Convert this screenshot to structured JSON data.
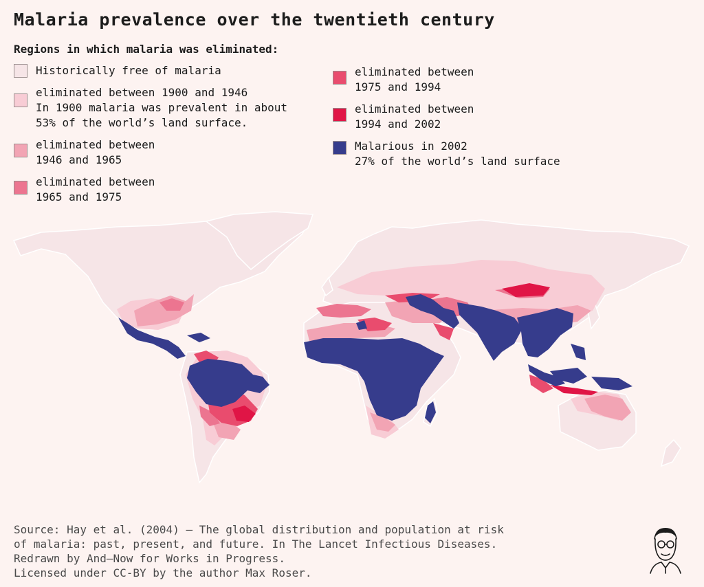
{
  "title": "Malaria prevalence over the twentieth century",
  "subtitle": "Regions in which malaria was eliminated:",
  "legend": [
    {
      "label": "Historically free of malaria",
      "color": "#f6e5e7"
    },
    {
      "label": "eliminated between 1900 and 1946\nIn 1900 malaria was prevalent in about\n53% of the world’s land surface.",
      "color": "#f8ccd5"
    },
    {
      "label": "eliminated between\n1946 and 1965",
      "color": "#f2a4b4"
    },
    {
      "label": "eliminated between\n1965 and 1975",
      "color": "#ec7590"
    },
    {
      "label": "eliminated between\n1975 and 1994",
      "color": "#e94c6e"
    },
    {
      "label": "eliminated between\n1994 and 2002",
      "color": "#e01546"
    },
    {
      "label": "Malarious in 2002\n27% of the world’s land surface",
      "color": "#363c8c"
    }
  ],
  "source": "Source: Hay et al. (2004) – The global distribution and population at risk\nof malaria: past, present, and future. In The Lancet Infectious Diseases.\nRedrawn by And—Now for Works in Progress.\nLicensed under CC-BY by the author Max Roser.",
  "colors": {
    "background": "#fdf3f1",
    "free": "#f6e5e7",
    "e1900": "#f8ccd5",
    "e1946": "#f2a4b4",
    "e1965": "#ec7590",
    "e1975": "#e94c6e",
    "e1994": "#e01546",
    "malarious": "#363c8c"
  }
}
